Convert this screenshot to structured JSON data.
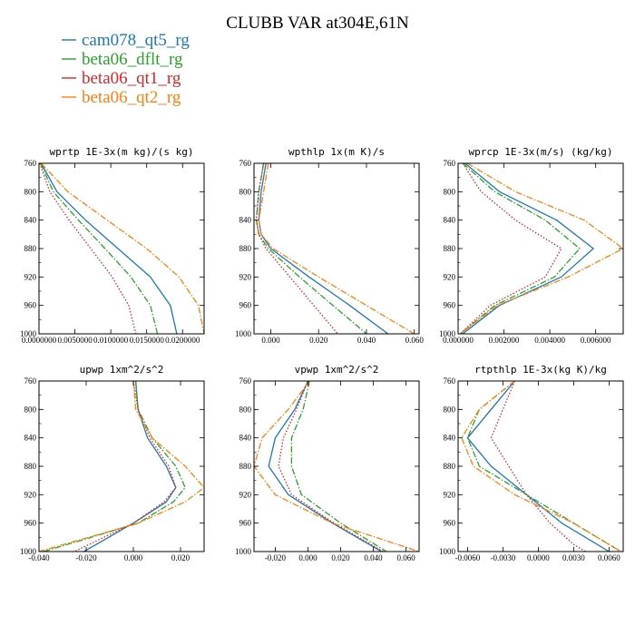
{
  "title": "CLUBB VAR at304E,61N",
  "legend": [
    {
      "label": "cam078_qt5_rg",
      "color": "#1f77b4",
      "dash": "solid"
    },
    {
      "label": "beta06_dflt_rg",
      "color": "#2ca02c",
      "dash": "dashdot"
    },
    {
      "label": "beta06_qt1_rg",
      "color": "#d62728",
      "dash": "dotted"
    },
    {
      "label": "beta06_qt2_rg",
      "color": "#ff7f0e",
      "dash": "dashdot"
    }
  ],
  "chart_data": [
    {
      "type": "line",
      "title": "wprtp  1E-3x(m kg)/(s kg)",
      "xlim": [
        0.0,
        0.023
      ],
      "ylim": [
        760,
        1000
      ],
      "y_reversed": true,
      "xticks": [
        "0.0000000",
        "0.0050000",
        "0.0100000",
        "0.0150000",
        "0.0200000"
      ],
      "xtick_values": [
        0.0,
        0.005,
        0.01,
        0.015,
        0.02
      ],
      "yticks": [
        "760",
        "800",
        "840",
        "880",
        "920",
        "960",
        "1000"
      ],
      "y": [
        760,
        800,
        840,
        880,
        920,
        960,
        1000
      ],
      "series": [
        {
          "name": "cam078_qt5_rg",
          "x": [
            0.0003,
            0.0025,
            0.0065,
            0.011,
            0.0155,
            0.0183,
            0.0192
          ]
        },
        {
          "name": "beta06_dflt_rg",
          "x": [
            0.0002,
            0.002,
            0.0055,
            0.0092,
            0.0128,
            0.0155,
            0.0165
          ]
        },
        {
          "name": "beta06_qt1_rg",
          "x": [
            0.0001,
            0.0015,
            0.0042,
            0.0072,
            0.0102,
            0.0125,
            0.0135
          ]
        },
        {
          "name": "beta06_qt2_rg",
          "x": [
            0.0003,
            0.004,
            0.0095,
            0.015,
            0.0195,
            0.0222,
            0.023
          ]
        }
      ]
    },
    {
      "type": "line",
      "title": "wpthlp  1x(m K)/s",
      "xlim": [
        -0.007,
        0.062
      ],
      "ylim": [
        760,
        1000
      ],
      "y_reversed": true,
      "xticks": [
        "0.000",
        "0.020",
        "0.040",
        "0.060"
      ],
      "xtick_values": [
        0.0,
        0.02,
        0.04,
        0.06
      ],
      "yticks": [
        "760",
        "800",
        "840",
        "880",
        "920",
        "960",
        "1000"
      ],
      "y": [
        760,
        800,
        840,
        860,
        880,
        920,
        960,
        1000
      ],
      "series": [
        {
          "name": "cam078_qt5_rg",
          "x": [
            -0.002,
            -0.004,
            -0.005,
            -0.004,
            0.0,
            0.016,
            0.033,
            0.049
          ]
        },
        {
          "name": "beta06_dflt_rg",
          "x": [
            -0.003,
            -0.005,
            -0.006,
            -0.005,
            -0.001,
            0.012,
            0.026,
            0.04
          ]
        },
        {
          "name": "beta06_qt1_rg",
          "x": [
            -0.003,
            -0.005,
            -0.006,
            -0.005,
            -0.002,
            0.008,
            0.018,
            0.028
          ]
        },
        {
          "name": "beta06_qt2_rg",
          "x": [
            -0.001,
            -0.003,
            -0.005,
            -0.004,
            0.001,
            0.02,
            0.04,
            0.06
          ]
        }
      ]
    },
    {
      "type": "line",
      "title": "wprcp  1E-3x(m/s) (kg/kg)",
      "xlim": [
        0.0,
        0.0072
      ],
      "ylim": [
        760,
        1000
      ],
      "y_reversed": true,
      "xticks": [
        "0.000000",
        "0.002000",
        "0.004000",
        "0.006000"
      ],
      "xtick_values": [
        0.0,
        0.002,
        0.004,
        0.006
      ],
      "yticks": [
        "760",
        "800",
        "840",
        "880",
        "920",
        "960",
        "1000"
      ],
      "y": [
        760,
        800,
        840,
        880,
        920,
        960,
        1000
      ],
      "series": [
        {
          "name": "cam078_qt5_rg",
          "x": [
            0.0003,
            0.0018,
            0.0043,
            0.0059,
            0.0045,
            0.0018,
            0.0002
          ]
        },
        {
          "name": "beta06_dflt_rg",
          "x": [
            0.0002,
            0.0016,
            0.0038,
            0.0053,
            0.0042,
            0.0016,
            0.0001
          ]
        },
        {
          "name": "beta06_qt1_rg",
          "x": [
            0.0002,
            0.001,
            0.0025,
            0.0045,
            0.0038,
            0.0014,
            0.0001
          ]
        },
        {
          "name": "beta06_qt2_rg",
          "x": [
            0.0004,
            0.0025,
            0.0055,
            0.0072,
            0.0048,
            0.0017,
            0.0001
          ]
        }
      ]
    },
    {
      "type": "line",
      "title": "upwp  1xm^2/s^2",
      "xlim": [
        -0.04,
        0.03
      ],
      "ylim": [
        760,
        1000
      ],
      "y_reversed": true,
      "xticks": [
        "-0.040",
        "-0.020",
        "0.000",
        "0.020"
      ],
      "xtick_values": [
        -0.04,
        -0.02,
        0.0,
        0.02
      ],
      "yticks": [
        "760",
        "800",
        "840",
        "880",
        "920",
        "960",
        "1000"
      ],
      "y": [
        760,
        800,
        840,
        880,
        910,
        930,
        960,
        1000
      ],
      "series": [
        {
          "name": "cam078_qt5_rg",
          "x": [
            0.001,
            0.002,
            0.006,
            0.014,
            0.018,
            0.014,
            0.0,
            -0.021
          ]
        },
        {
          "name": "beta06_dflt_rg",
          "x": [
            0.001,
            0.002,
            0.008,
            0.018,
            0.022,
            0.017,
            0.002,
            -0.038
          ]
        },
        {
          "name": "beta06_qt1_rg",
          "x": [
            0.0,
            0.002,
            0.007,
            0.015,
            0.018,
            0.013,
            0.0,
            -0.025
          ]
        },
        {
          "name": "beta06_qt2_rg",
          "x": [
            0.0,
            0.001,
            0.008,
            0.022,
            0.03,
            0.022,
            0.002,
            -0.04
          ]
        }
      ]
    },
    {
      "type": "line",
      "title": "vpwp  1xm^2/s^2",
      "xlim": [
        -0.033,
        0.068
      ],
      "ylim": [
        760,
        1000
      ],
      "y_reversed": true,
      "xticks": [
        "-0.020",
        "0.000",
        "0.020",
        "0.040",
        "0.060"
      ],
      "xtick_values": [
        -0.02,
        0.0,
        0.02,
        0.04,
        0.06
      ],
      "yticks": [
        "760",
        "800",
        "840",
        "880",
        "920",
        "960",
        "1000"
      ],
      "y": [
        760,
        800,
        840,
        880,
        920,
        960,
        1000
      ],
      "series": [
        {
          "name": "cam078_qt5_rg",
          "x": [
            0.0,
            -0.008,
            -0.02,
            -0.024,
            -0.012,
            0.015,
            0.045
          ]
        },
        {
          "name": "beta06_dflt_rg",
          "x": [
            0.001,
            -0.003,
            -0.01,
            -0.01,
            -0.004,
            0.02,
            0.048
          ]
        },
        {
          "name": "beta06_qt1_rg",
          "x": [
            0.0,
            -0.007,
            -0.015,
            -0.018,
            -0.01,
            0.016,
            0.046
          ]
        },
        {
          "name": "beta06_qt2_rg",
          "x": [
            0.001,
            -0.012,
            -0.028,
            -0.033,
            -0.02,
            0.015,
            0.068
          ]
        }
      ]
    },
    {
      "type": "line",
      "title": "rtpthlp  1E-3x(kg K)/kg",
      "xlim": [
        -0.0068,
        0.0072
      ],
      "ylim": [
        760,
        1000
      ],
      "y_reversed": true,
      "xticks": [
        "-0.0060",
        "-0.0030",
        "0.0000",
        "0.0030",
        "0.0060"
      ],
      "xtick_values": [
        -0.006,
        -0.003,
        0.0,
        0.003,
        0.006
      ],
      "yticks": [
        "760",
        "800",
        "840",
        "880",
        "920",
        "960",
        "1000"
      ],
      "y": [
        760,
        800,
        840,
        880,
        920,
        960,
        990,
        1000
      ],
      "series": [
        {
          "name": "cam078_qt5_rg",
          "x": [
            -0.002,
            -0.004,
            -0.006,
            -0.004,
            -0.001,
            0.002,
            0.005,
            0.006
          ]
        },
        {
          "name": "beta06_dflt_rg",
          "x": [
            -0.002,
            -0.005,
            -0.006,
            -0.005,
            -0.001,
            0.003,
            0.006,
            0.007
          ]
        },
        {
          "name": "beta06_qt1_rg",
          "x": [
            -0.002,
            -0.003,
            -0.004,
            -0.0025,
            -0.001,
            0.001,
            0.003,
            0.004
          ]
        },
        {
          "name": "beta06_qt2_rg",
          "x": [
            -0.002,
            -0.005,
            -0.0065,
            -0.0055,
            -0.002,
            0.003,
            0.006,
            0.007
          ]
        }
      ]
    }
  ]
}
